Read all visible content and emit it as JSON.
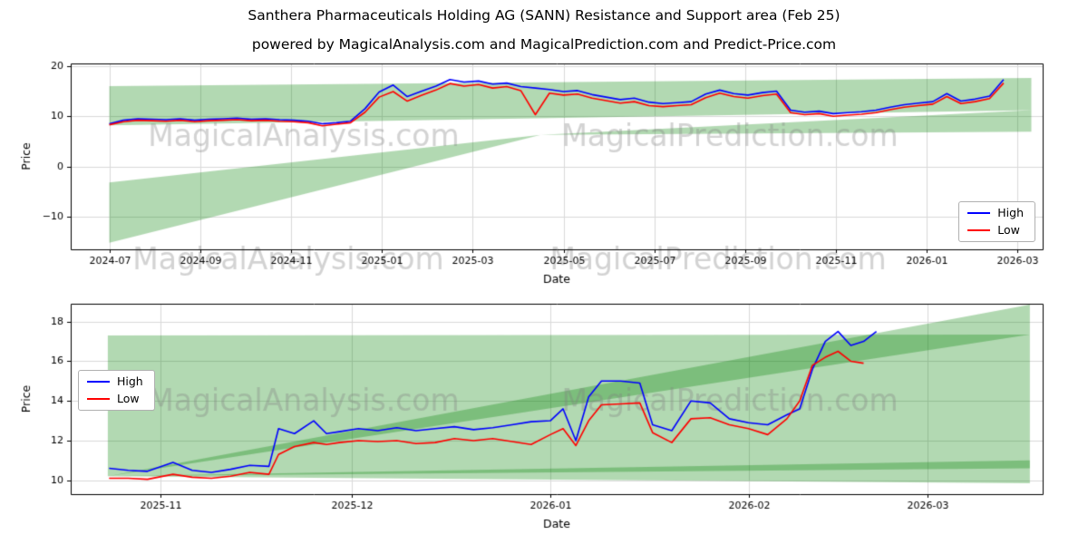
{
  "header": {
    "title": "Santhera Pharmaceuticals Holding AG (SANN) Resistance and Support area (Feb 25)",
    "subtitle": "powered by MagicalAnalysis.com and MagicalPrediction.com and Predict-Price.com"
  },
  "watermarks": {
    "analysis": "MagicalAnalysis.com",
    "prediction": "MagicalPrediction.com"
  },
  "colors": {
    "high": "#0000ff",
    "low": "#ff0000",
    "band": "rgba(0,128,0,0.3)",
    "grid": "#d9d9d9",
    "axis": "#000000",
    "watermark": "rgba(128,128,128,0.35)"
  },
  "chart_data": [
    {
      "type": "line",
      "xlabel": "Date",
      "ylabel": "Price",
      "xlim": [
        -0.85,
        20.55
      ],
      "ylim": [
        -16.5,
        20.5
      ],
      "x_ticks": [
        {
          "v": 0,
          "label": "2024-07"
        },
        {
          "v": 2,
          "label": "2024-09"
        },
        {
          "v": 4,
          "label": "2024-11"
        },
        {
          "v": 6,
          "label": "2025-01"
        },
        {
          "v": 8,
          "label": "2025-03"
        },
        {
          "v": 10,
          "label": "2025-05"
        },
        {
          "v": 12,
          "label": "2025-07"
        },
        {
          "v": 14,
          "label": "2025-09"
        },
        {
          "v": 16,
          "label": "2025-11"
        },
        {
          "v": 18,
          "label": "2026-01"
        },
        {
          "v": 20,
          "label": "2026-03"
        }
      ],
      "y_ticks": [
        {
          "v": -10,
          "label": "−10"
        },
        {
          "v": 0,
          "label": "0"
        },
        {
          "v": 10,
          "label": "10"
        },
        {
          "v": 20,
          "label": "20"
        }
      ],
      "bands": [
        [
          [
            0,
            8.2
          ],
          [
            20.3,
            11.2
          ],
          [
            20.3,
            17.6
          ],
          [
            0,
            16.0
          ]
        ],
        [
          [
            0,
            -15.2
          ],
          [
            0,
            -3.2
          ],
          [
            9.5,
            6.3
          ]
        ],
        [
          [
            9.5,
            6.3
          ],
          [
            20.3,
            6.9
          ],
          [
            20.3,
            11.2
          ]
        ]
      ],
      "legend_position": "lower right",
      "x": [
        0,
        0.31,
        0.63,
        0.94,
        1.25,
        1.56,
        1.88,
        2.19,
        2.5,
        2.81,
        3.13,
        3.44,
        3.75,
        4.06,
        4.38,
        4.69,
        5,
        5.31,
        5.63,
        5.94,
        6.25,
        6.56,
        6.88,
        7.19,
        7.5,
        7.81,
        8.13,
        8.44,
        8.75,
        9.06,
        9.38,
        9.69,
        10,
        10.31,
        10.63,
        10.94,
        11.25,
        11.56,
        11.88,
        12.19,
        12.5,
        12.81,
        13.13,
        13.44,
        13.75,
        14.06,
        14.38,
        14.69,
        15,
        15.31,
        15.63,
        15.94,
        16.25,
        16.56,
        16.88,
        17.19,
        17.5,
        17.81,
        18.13,
        18.44,
        18.75,
        19.06,
        19.38,
        19.69
      ],
      "series": [
        {
          "name": "High",
          "color": "#0000ff",
          "y": [
            8.5,
            9.2,
            9.5,
            9.4,
            9.3,
            9.5,
            9.2,
            9.4,
            9.5,
            9.6,
            9.4,
            9.5,
            9.3,
            9.2,
            9.0,
            8.5,
            8.7,
            9.0,
            11.5,
            14.8,
            16.2,
            13.9,
            15.0,
            16.0,
            17.3,
            16.8,
            17.0,
            16.4,
            16.6,
            15.9,
            15.6,
            15.3,
            14.9,
            15.1,
            14.3,
            13.8,
            13.3,
            13.6,
            12.8,
            12.5,
            12.7,
            12.9,
            14.4,
            15.2,
            14.5,
            14.2,
            14.7,
            15.0,
            11.2,
            10.8,
            11.0,
            10.5,
            10.7,
            10.9,
            11.2,
            11.8,
            12.3,
            12.6,
            12.9,
            14.5,
            13.0,
            13.4,
            14.0,
            17.3
          ]
        },
        {
          "name": "Low",
          "color": "#ff0000",
          "y": [
            8.3,
            8.9,
            9.2,
            9.1,
            9.0,
            9.2,
            8.9,
            9.1,
            9.2,
            9.3,
            9.1,
            9.2,
            9.0,
            8.9,
            8.7,
            8.1,
            8.4,
            8.7,
            10.8,
            13.8,
            14.9,
            13.0,
            14.2,
            15.2,
            16.5,
            16.0,
            16.3,
            15.6,
            15.9,
            15.1,
            10.3,
            14.6,
            14.2,
            14.4,
            13.6,
            13.1,
            12.6,
            12.9,
            12.1,
            11.9,
            12.1,
            12.3,
            13.7,
            14.6,
            13.9,
            13.6,
            14.1,
            14.4,
            10.7,
            10.3,
            10.5,
            10.0,
            10.2,
            10.4,
            10.7,
            11.3,
            11.8,
            12.1,
            12.4,
            13.9,
            12.5,
            12.9,
            13.5,
            16.6
          ]
        }
      ]
    },
    {
      "type": "line",
      "xlabel": "Date",
      "ylabel": "Price",
      "xlim": [
        -6,
        146
      ],
      "ylim": [
        9.3,
        18.9
      ],
      "x_ticks": [
        {
          "v": 8,
          "label": "2025-11"
        },
        {
          "v": 38,
          "label": "2025-12"
        },
        {
          "v": 69,
          "label": "2026-01"
        },
        {
          "v": 100,
          "label": "2026-02"
        },
        {
          "v": 128,
          "label": "2026-03"
        }
      ],
      "y_ticks": [
        {
          "v": 10,
          "label": "10"
        },
        {
          "v": 12,
          "label": "12"
        },
        {
          "v": 14,
          "label": "14"
        },
        {
          "v": 16,
          "label": "16"
        },
        {
          "v": 18,
          "label": "18"
        }
      ],
      "bands": [
        [
          [
            -0.2,
            10.2
          ],
          [
            144,
            10.6
          ],
          [
            144,
            17.35
          ],
          [
            -0.2,
            17.3
          ]
        ],
        [
          [
            -0.2,
            10.2
          ],
          [
            144,
            17.35
          ],
          [
            144,
            18.85
          ]
        ],
        [
          [
            -0.2,
            10.2
          ],
          [
            144,
            9.85
          ],
          [
            144,
            11.0
          ]
        ]
      ],
      "legend_position": "center left",
      "series": [
        {
          "name": "High",
          "color": "#0000ff",
          "x": [
            0,
            3,
            6,
            10,
            13,
            16,
            19,
            22,
            25,
            26.5,
            29,
            32,
            34,
            36,
            39,
            42,
            45,
            48,
            51,
            54,
            57,
            60,
            63,
            66,
            69,
            71,
            73,
            75,
            77,
            80,
            83,
            85,
            88,
            91,
            94,
            97,
            100,
            103,
            106,
            108,
            110,
            112,
            114,
            116,
            118,
            120
          ],
          "y": [
            10.6,
            10.5,
            10.45,
            10.9,
            10.5,
            10.4,
            10.55,
            10.75,
            10.7,
            12.6,
            12.35,
            13.0,
            12.35,
            12.45,
            12.6,
            12.5,
            12.65,
            12.5,
            12.6,
            12.7,
            12.55,
            12.65,
            12.8,
            12.95,
            13.0,
            13.6,
            12.0,
            14.2,
            15.0,
            15.0,
            14.9,
            12.8,
            12.5,
            14.0,
            13.9,
            13.1,
            12.9,
            12.8,
            13.3,
            13.6,
            15.6,
            17.0,
            17.5,
            16.8,
            17.0,
            17.5
          ]
        },
        {
          "name": "Low",
          "color": "#ff0000",
          "x": [
            0,
            3,
            6,
            10,
            13,
            16,
            19,
            22,
            25,
            26.5,
            29,
            32,
            34,
            36,
            39,
            42,
            45,
            48,
            51,
            54,
            57,
            60,
            63,
            66,
            69,
            71,
            73,
            75,
            77,
            80,
            83,
            85,
            88,
            91,
            94,
            97,
            100,
            103,
            106,
            108,
            110,
            112,
            114,
            116,
            118
          ],
          "y": [
            10.1,
            10.1,
            10.05,
            10.3,
            10.15,
            10.1,
            10.2,
            10.4,
            10.3,
            11.3,
            11.7,
            11.9,
            11.8,
            11.9,
            12.0,
            11.95,
            12.0,
            11.85,
            11.9,
            12.1,
            12.0,
            12.1,
            11.95,
            11.8,
            12.3,
            12.6,
            11.75,
            13.0,
            13.8,
            13.85,
            13.9,
            12.4,
            11.9,
            13.1,
            13.15,
            12.8,
            12.6,
            12.3,
            13.1,
            14.0,
            15.8,
            16.2,
            16.5,
            16.0,
            15.9
          ]
        }
      ]
    }
  ]
}
